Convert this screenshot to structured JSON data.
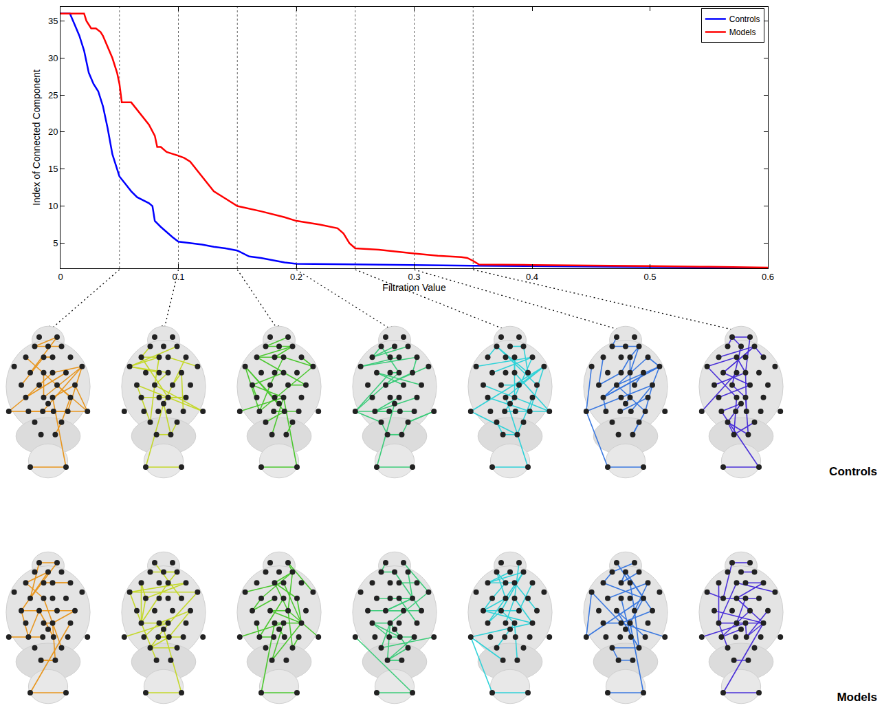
{
  "chart_data": {
    "type": "line",
    "x_label": "Filtration Value",
    "y_label": "Index of Connected Component",
    "xlim": [
      0,
      0.6
    ],
    "xticks": [
      0,
      0.1,
      0.2,
      0.3,
      0.4,
      0.5,
      0.6
    ],
    "ylim": [
      1.6,
      36.9
    ],
    "yticks": [
      5,
      10,
      15,
      20,
      25,
      30,
      35
    ],
    "grid": false,
    "legend": "upper right",
    "snapshot_x": [
      0.05,
      0.1,
      0.15,
      0.2,
      0.25,
      0.3,
      0.35
    ],
    "series": [
      {
        "name": "Controls",
        "color": "#0000ff",
        "x": [
          0,
          0.008,
          0.012,
          0.016,
          0.02,
          0.024,
          0.028,
          0.032,
          0.036,
          0.04,
          0.044,
          0.048,
          0.05,
          0.055,
          0.06,
          0.065,
          0.07,
          0.075,
          0.078,
          0.08,
          0.085,
          0.09,
          0.095,
          0.1,
          0.11,
          0.12,
          0.13,
          0.14,
          0.15,
          0.16,
          0.17,
          0.18,
          0.19,
          0.2,
          0.25,
          0.3,
          0.35,
          0.4,
          0.45,
          0.5,
          0.55,
          0.6
        ],
        "values": [
          36,
          36,
          34.5,
          33,
          31,
          28,
          26.5,
          25.5,
          23.5,
          20.5,
          17,
          15,
          14,
          13,
          12,
          11.2,
          10.8,
          10.4,
          10,
          8,
          7.2,
          6.5,
          5.8,
          5.2,
          5,
          4.8,
          4.5,
          4.3,
          4,
          3.2,
          3,
          2.7,
          2.4,
          2.2,
          2.1,
          2,
          1.95,
          1.9,
          1.85,
          1.8,
          1.7,
          1.6
        ]
      },
      {
        "name": "Models",
        "color": "#ff0000",
        "x": [
          0,
          0.02,
          0.022,
          0.026,
          0.03,
          0.034,
          0.036,
          0.04,
          0.044,
          0.048,
          0.05,
          0.052,
          0.06,
          0.065,
          0.07,
          0.075,
          0.08,
          0.082,
          0.085,
          0.09,
          0.1,
          0.105,
          0.11,
          0.115,
          0.12,
          0.125,
          0.13,
          0.14,
          0.15,
          0.17,
          0.19,
          0.2,
          0.22,
          0.235,
          0.24,
          0.242,
          0.245,
          0.25,
          0.27,
          0.3,
          0.32,
          0.34,
          0.345,
          0.35,
          0.355,
          0.4,
          0.45,
          0.5,
          0.55,
          0.6
        ],
        "values": [
          36,
          36,
          35,
          34,
          34,
          33.5,
          33,
          31.5,
          30,
          28,
          26.5,
          24,
          24,
          23,
          22,
          21,
          19.5,
          18,
          18,
          17.3,
          16.8,
          16.5,
          16,
          15,
          14,
          13,
          12,
          11,
          10,
          9.3,
          8.5,
          8,
          7.5,
          7,
          6.3,
          5.8,
          5,
          4.3,
          4.1,
          3.6,
          3.3,
          3.1,
          3,
          2.6,
          2.1,
          2.05,
          2,
          1.9,
          1.8,
          1.7
        ]
      }
    ]
  },
  "network_panels": {
    "rows": [
      "Controls",
      "Models"
    ],
    "colors": [
      "#e8961e",
      "#c4d82a",
      "#4cc830",
      "#3ccc7a",
      "#30d2d8",
      "#3a78e0",
      "#4a30d8"
    ]
  }
}
